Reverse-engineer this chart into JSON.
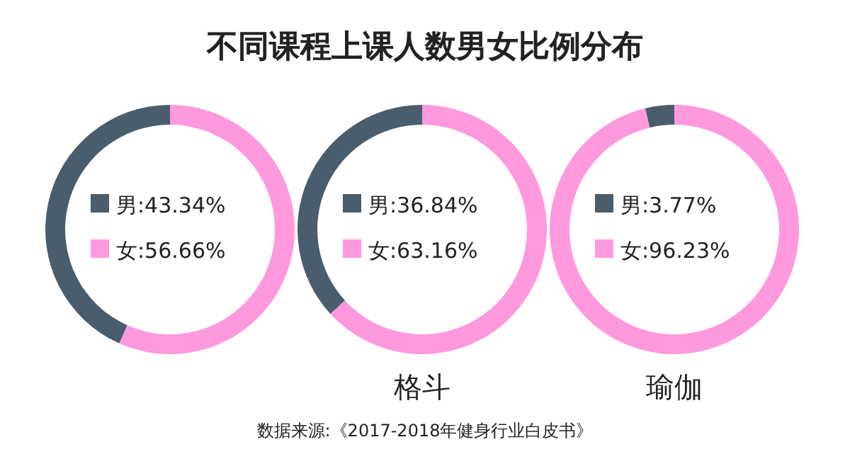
{
  "chart_data": [
    {
      "type": "donut",
      "title": "不同课程上课人数男女比例分布",
      "categories": [
        "男",
        "女"
      ],
      "values": [
        43.34,
        56.66
      ],
      "value_labels": [
        ":43.34%",
        ":56.66%"
      ],
      "colors": [
        "#4a5d6c",
        "#ff99dd"
      ],
      "legend": "center"
    },
    {
      "type": "donut",
      "xlabel": "格斗",
      "categories": [
        "男",
        "女"
      ],
      "values": [
        36.84,
        63.16
      ],
      "value_labels": [
        ":36.84%",
        ":63.16%"
      ],
      "colors": [
        "#4a5d6c",
        "#ff99dd"
      ],
      "legend": "center"
    },
    {
      "type": "donut",
      "xlabel": "瑜伽",
      "categories": [
        "男",
        "女"
      ],
      "values": [
        3.77,
        96.23
      ],
      "value_labels": [
        ":3.77%",
        ":96.23%"
      ],
      "colors": [
        "#4a5d6c",
        "#ff99dd"
      ],
      "legend": "center",
      "annotations": [
        "数据来源:《2017-2018年健身行业白皮书》"
      ]
    }
  ]
}
